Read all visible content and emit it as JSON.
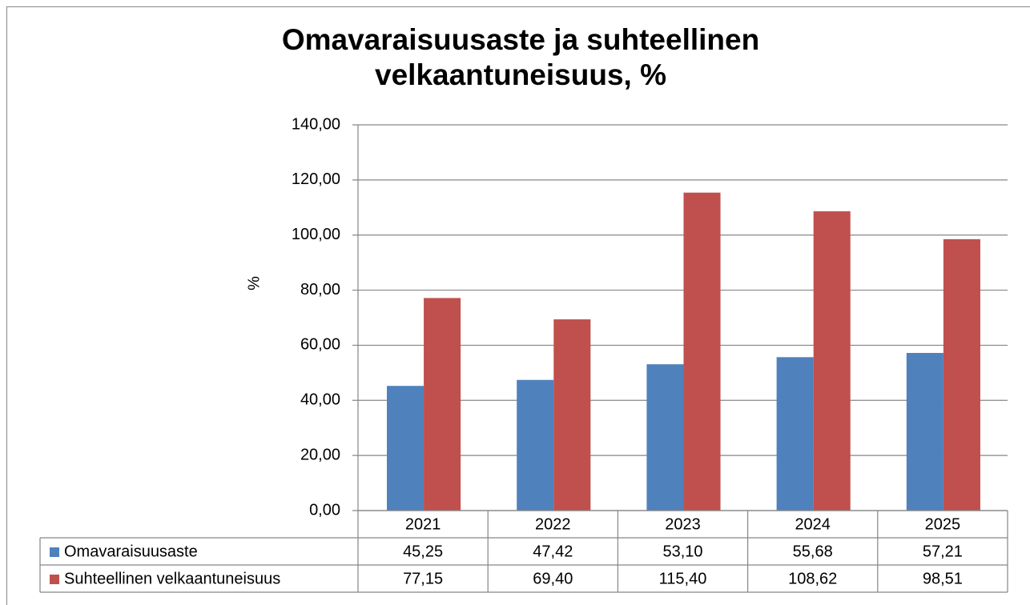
{
  "chart_data": {
    "type": "bar",
    "title": "Omavaraisuusaste ja suhteellinen velkaantuneisuus, %",
    "y_label": "%",
    "categories": [
      "2021",
      "2022",
      "2023",
      "2024",
      "2025"
    ],
    "series": [
      {
        "name": "Omavaraisuusaste",
        "color": "#4f81bd",
        "values": [
          45.25,
          47.42,
          53.1,
          55.68,
          57.21
        ],
        "value_labels": [
          "45,25",
          "47,42",
          "53,10",
          "55,68",
          "57,21"
        ]
      },
      {
        "name": "Suhteellinen velkaantuneisuus",
        "color": "#c0504d",
        "values": [
          77.15,
          69.4,
          115.4,
          108.62,
          98.51
        ],
        "value_labels": [
          "77,15",
          "69,40",
          "115,40",
          "108,62",
          "98,51"
        ]
      }
    ],
    "ylim": [
      0,
      140
    ],
    "yticks": [
      {
        "value": 0,
        "label": "0,00"
      },
      {
        "value": 20,
        "label": "20,00"
      },
      {
        "value": 40,
        "label": "40,00"
      },
      {
        "value": 60,
        "label": "60,00"
      },
      {
        "value": 80,
        "label": "80,00"
      },
      {
        "value": 100,
        "label": "100,00"
      },
      {
        "value": 120,
        "label": "120,00"
      },
      {
        "value": 140,
        "label": "140,00"
      }
    ],
    "grid": true
  }
}
